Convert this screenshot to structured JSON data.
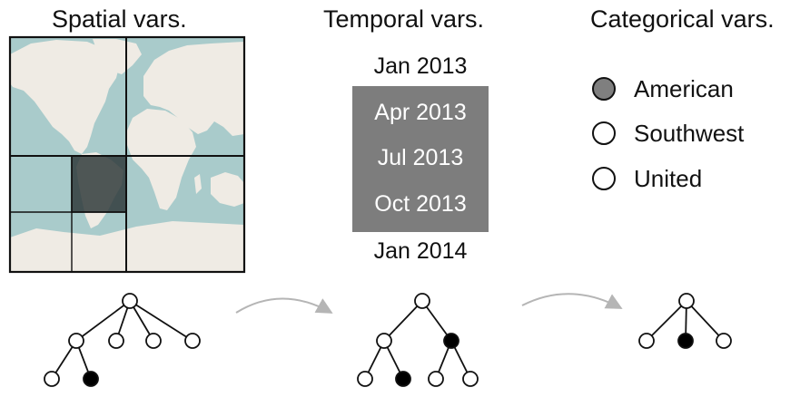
{
  "headings": {
    "spatial": "Spatial vars.",
    "temporal": "Temporal vars.",
    "categorical": "Categorical vars."
  },
  "temporal": {
    "months": [
      {
        "label": "Jan 2013",
        "selected": false
      },
      {
        "label": "Apr 2013",
        "selected": true
      },
      {
        "label": "Jul 2013",
        "selected": true
      },
      {
        "label": "Oct 2013",
        "selected": true
      },
      {
        "label": "Jan 2014",
        "selected": false
      }
    ],
    "selection_color": "#7d7d7d"
  },
  "categorical": {
    "carriers": [
      {
        "label": "American",
        "selected": true
      },
      {
        "label": "Southwest",
        "selected": false
      },
      {
        "label": "United",
        "selected": false
      }
    ],
    "selection_color": "#7f7f7f"
  },
  "map": {
    "ocean_color": "#a9cbcb",
    "land_color": "#efebe4",
    "selected_cell_color": "#2b3436"
  },
  "trees": {
    "node_fill": "#ffffff",
    "selected_node_fill": "#000000",
    "arrow_color": "#b5b5b5"
  }
}
